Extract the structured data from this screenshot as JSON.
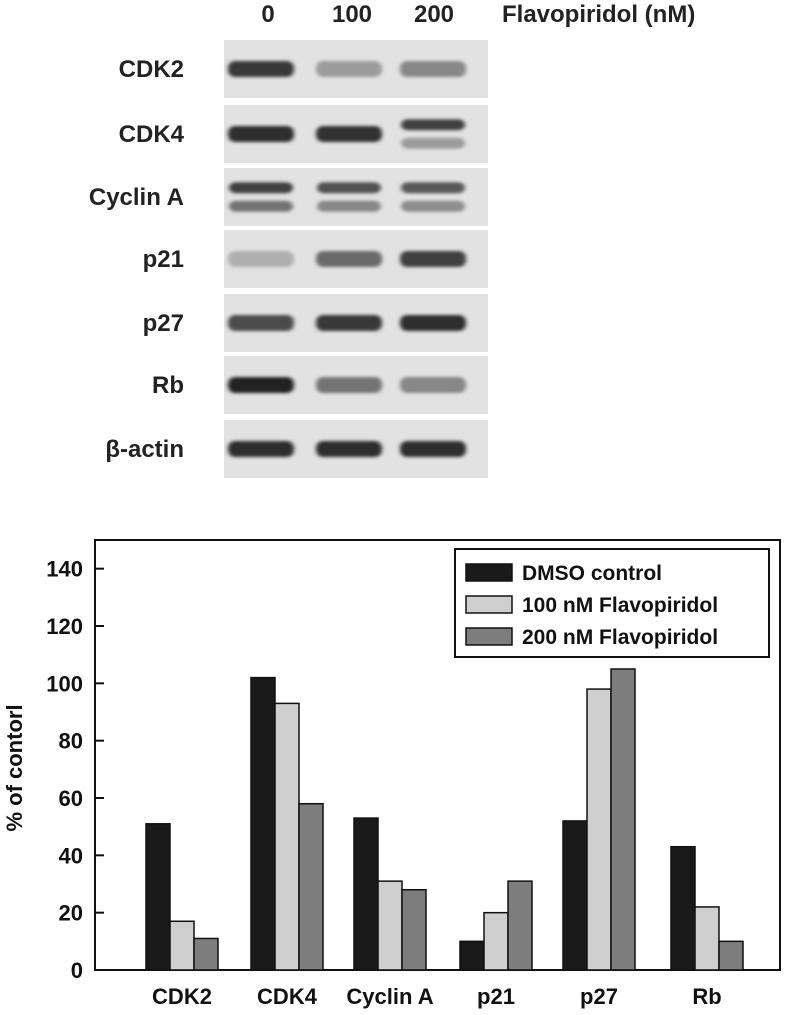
{
  "blot": {
    "treatment_label": "Flavopiridol (nM)",
    "doses": [
      "0",
      "100",
      "200"
    ],
    "panels": [
      {
        "label": "CDK2",
        "bands": [
          [
            0.85
          ],
          [
            0.35
          ],
          [
            0.45
          ]
        ]
      },
      {
        "label": "CDK4",
        "bands": [
          [
            0.9
          ],
          [
            0.88
          ],
          [
            0.8,
            0.35
          ]
        ]
      },
      {
        "label": "Cyclin A",
        "bands": [
          [
            0.8,
            0.55
          ],
          [
            0.72,
            0.45
          ],
          [
            0.68,
            0.42
          ]
        ]
      },
      {
        "label": "p21",
        "bands": [
          [
            0.25
          ],
          [
            0.6
          ],
          [
            0.8
          ]
        ]
      },
      {
        "label": "p27",
        "bands": [
          [
            0.75
          ],
          [
            0.85
          ],
          [
            0.9
          ]
        ]
      },
      {
        "label": "Rb",
        "bands": [
          [
            0.95
          ],
          [
            0.55
          ],
          [
            0.45
          ]
        ]
      },
      {
        "label": "β-actin",
        "bands": [
          [
            0.9
          ],
          [
            0.9
          ],
          [
            0.9
          ]
        ]
      }
    ]
  },
  "chart_data": {
    "type": "bar",
    "categories": [
      "CDK2",
      "CDK4",
      "Cyclin A",
      "p21",
      "p27",
      "Rb"
    ],
    "series": [
      {
        "name": "DMSO control",
        "color": "#1a1a1a",
        "values": [
          51,
          102,
          53,
          10,
          52,
          43
        ]
      },
      {
        "name": "100 nM Flavopiridol",
        "color": "#cfcfcf",
        "values": [
          17,
          93,
          31,
          20,
          98,
          22
        ]
      },
      {
        "name": "200 nM Flavopiridol",
        "color": "#7d7d7d",
        "values": [
          11,
          58,
          28,
          31,
          105,
          10
        ]
      }
    ],
    "xlabel": "",
    "ylabel": "% of contorl",
    "ylim": [
      0,
      150
    ],
    "yticks": [
      0,
      20,
      40,
      60,
      80,
      100,
      120,
      140
    ],
    "grid": false,
    "legend_position": "top-right"
  }
}
